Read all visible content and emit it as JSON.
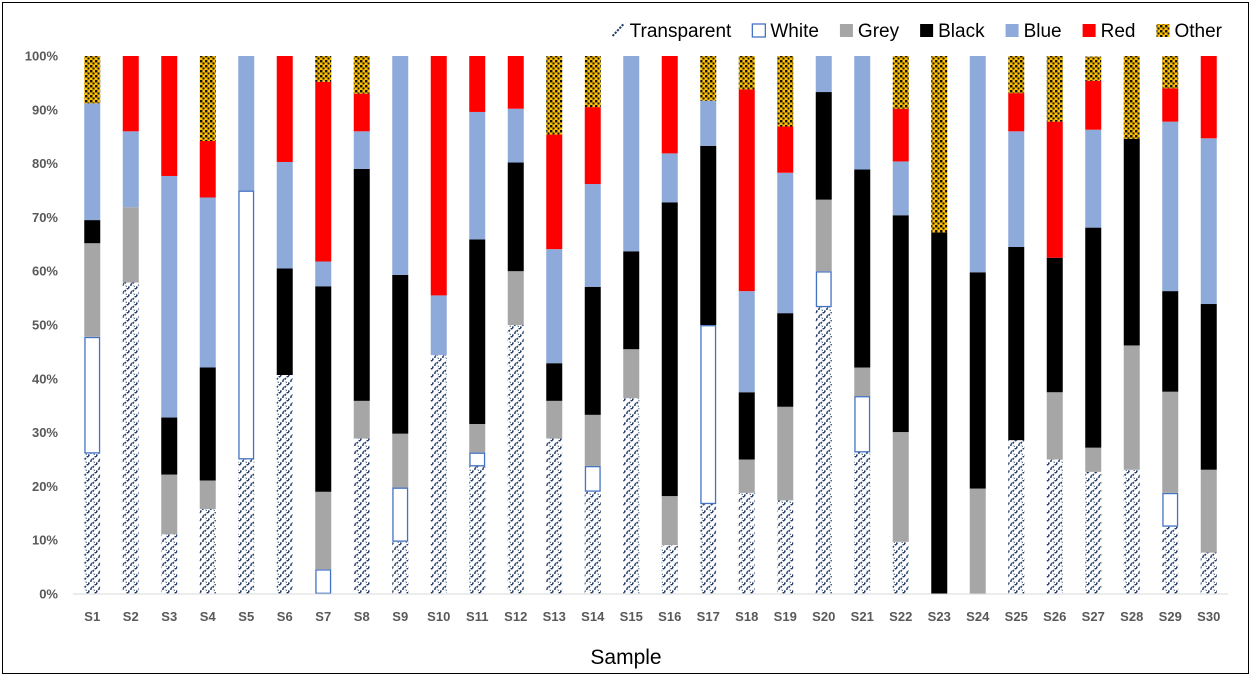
{
  "chart_data": {
    "type": "bar",
    "stacked": true,
    "normalized_percent": true,
    "title": "",
    "xlabel": "Sample",
    "ylabel": "",
    "ylim": [
      0,
      100
    ],
    "yticks": [
      "0%",
      "10%",
      "20%",
      "30%",
      "40%",
      "50%",
      "60%",
      "70%",
      "80%",
      "90%",
      "100%"
    ],
    "grid": false,
    "legend_position": "top-right",
    "categories": [
      "S1",
      "S2",
      "S3",
      "S4",
      "S5",
      "S6",
      "S7",
      "S8",
      "S9",
      "S10",
      "S11",
      "S12",
      "S13",
      "S14",
      "S15",
      "S16",
      "S17",
      "S18",
      "S19",
      "S20",
      "S21",
      "S22",
      "S23",
      "S24",
      "S25",
      "S26",
      "S27",
      "S28",
      "S29",
      "S30"
    ],
    "series": [
      {
        "name": "Transparent",
        "color": "#1f3864",
        "pattern": "diagonal-hatch",
        "values": [
          26.1,
          57.9,
          11.1,
          15.8,
          25.0,
          40.7,
          0,
          28.9,
          9.7,
          44.4,
          23.7,
          50.0,
          28.9,
          19.0,
          36.4,
          9.1,
          16.7,
          18.8,
          17.4,
          53.3,
          26.3,
          9.7,
          0,
          0,
          28.6,
          25.0,
          22.7,
          23.1,
          12.5,
          7.7
        ]
      },
      {
        "name": "White",
        "color": "#ffffff",
        "outline": "#4472c4",
        "values": [
          21.7,
          0,
          0,
          0,
          50.0,
          0,
          4.6,
          0,
          10.1,
          0,
          2.6,
          0,
          0,
          4.8,
          0,
          0,
          33.3,
          0,
          0,
          6.7,
          10.5,
          0,
          0,
          0,
          0,
          0,
          0,
          0,
          6.3,
          0
        ]
      },
      {
        "name": "Grey",
        "color": "#a6a6a6",
        "values": [
          17.4,
          14.0,
          11.1,
          5.3,
          0,
          0,
          14.4,
          7.0,
          10.0,
          0,
          5.3,
          10.0,
          7.0,
          9.5,
          9.1,
          9.1,
          0,
          6.2,
          17.4,
          13.3,
          5.3,
          20.4,
          0,
          19.6,
          0,
          12.5,
          4.5,
          23.1,
          18.8,
          15.4
        ]
      },
      {
        "name": "Black",
        "color": "#000000",
        "values": [
          4.3,
          0,
          10.6,
          21.0,
          0,
          19.8,
          38.2,
          43.1,
          29.5,
          0,
          34.3,
          20.2,
          7.0,
          23.8,
          18.2,
          54.6,
          33.3,
          12.5,
          17.4,
          20.0,
          36.8,
          40.3,
          67.2,
          40.2,
          35.9,
          25.0,
          40.9,
          38.4,
          18.7,
          30.8
        ]
      },
      {
        "name": "Blue",
        "color": "#8eaadb",
        "values": [
          21.7,
          14.1,
          44.9,
          31.6,
          25.0,
          19.8,
          4.6,
          7.0,
          40.7,
          11.1,
          23.7,
          10.0,
          21.2,
          19.1,
          36.3,
          9.1,
          8.4,
          18.8,
          26.1,
          6.7,
          21.1,
          10.0,
          0,
          40.2,
          21.5,
          0,
          18.2,
          0,
          31.5,
          30.8
        ]
      },
      {
        "name": "Red",
        "color": "#ff0000",
        "values": [
          0,
          14.0,
          22.3,
          10.5,
          0,
          19.7,
          33.4,
          7.0,
          0,
          44.5,
          10.4,
          9.8,
          21.3,
          14.3,
          0,
          18.1,
          0,
          37.5,
          8.6,
          0,
          0,
          9.8,
          0,
          0,
          7.1,
          25.3,
          9.1,
          0,
          6.2,
          15.3
        ]
      },
      {
        "name": "Other",
        "color": "#ffc000",
        "pattern": "dotted-black",
        "values": [
          8.8,
          0,
          0,
          15.8,
          0,
          0,
          4.8,
          7.0,
          0,
          0,
          0,
          0,
          14.6,
          9.5,
          0,
          0,
          8.3,
          6.2,
          13.1,
          0,
          0,
          9.8,
          32.8,
          0,
          6.9,
          12.2,
          4.5,
          15.4,
          6.0,
          0
        ]
      }
    ]
  }
}
